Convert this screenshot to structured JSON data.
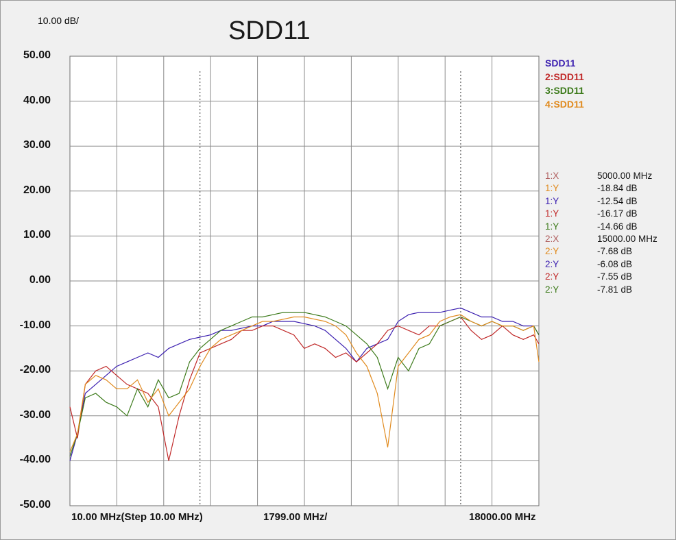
{
  "header": {
    "scale_label": "10.00 dB/",
    "title": "SDD11"
  },
  "legend": [
    {
      "label": "SDD11",
      "color": "#3b1fb0"
    },
    {
      "label": "2:SDD11",
      "color": "#c02828"
    },
    {
      "label": "3:SDD11",
      "color": "#3c7a1a"
    },
    {
      "label": "4:SDD11",
      "color": "#e08a1e"
    }
  ],
  "readouts": [
    {
      "label": "1:X",
      "value": "5000.00 MHz",
      "color": "#b06060"
    },
    {
      "label": "1:Y",
      "value": "-18.84 dB",
      "color": "#e08a1e"
    },
    {
      "label": "1:Y",
      "value": "-12.54 dB",
      "color": "#3b1fb0"
    },
    {
      "label": "1:Y",
      "value": "-16.17 dB",
      "color": "#c02828"
    },
    {
      "label": "1:Y",
      "value": "-14.66 dB",
      "color": "#3c7a1a"
    },
    {
      "label": "2:X",
      "value": "15000.00 MHz",
      "color": "#b06060"
    },
    {
      "label": "2:Y",
      "value": "-7.68 dB",
      "color": "#e08a1e"
    },
    {
      "label": "2:Y",
      "value": "-6.08 dB",
      "color": "#3b1fb0"
    },
    {
      "label": "2:Y",
      "value": "-7.55 dB",
      "color": "#c02828"
    },
    {
      "label": "2:Y",
      "value": "-7.81 dB",
      "color": "#3c7a1a"
    }
  ],
  "x_axis": {
    "start_label": "10.00 MHz(Step 10.00 MHz)",
    "step_label": "1799.00 MHz/",
    "end_label": "18000.00 MHz"
  },
  "chart_data": {
    "type": "line",
    "title": "SDD11",
    "xlim": [
      10,
      18000
    ],
    "ylim": [
      -50,
      50
    ],
    "yticks": [
      "50.00",
      "40.00",
      "30.00",
      "20.00",
      "10.00",
      "0.00",
      "-10.00",
      "-20.00",
      "-30.00",
      "-40.00",
      "-50.00"
    ],
    "x_divisions": 10,
    "y_divisions": 10,
    "grid": true,
    "markers": [
      {
        "name": "1",
        "x": 5000
      },
      {
        "name": "2",
        "x": 15000
      }
    ],
    "x": [
      10,
      300,
      600,
      1000,
      1400,
      1800,
      2200,
      2600,
      3000,
      3400,
      3800,
      4200,
      4600,
      5000,
      5400,
      5800,
      6200,
      6600,
      7000,
      7400,
      7800,
      8200,
      8600,
      9000,
      9400,
      9800,
      10200,
      10600,
      11000,
      11400,
      11800,
      12200,
      12600,
      13000,
      13400,
      13800,
      14200,
      14600,
      15000,
      15400,
      15800,
      16200,
      16600,
      17000,
      17400,
      17800,
      18000
    ],
    "series": [
      {
        "name": "SDD11",
        "color": "#3b1fb0",
        "values": [
          -40,
          -34,
          -25,
          -23,
          -21,
          -19,
          -18,
          -17,
          -16,
          -17,
          -15,
          -14,
          -13,
          -12.5,
          -12,
          -11,
          -11,
          -10.5,
          -10,
          -10,
          -9,
          -9,
          -9,
          -9.5,
          -10,
          -11,
          -13,
          -15,
          -18,
          -15,
          -14,
          -13,
          -9,
          -7.5,
          -7,
          -7,
          -7,
          -6.5,
          -6,
          -7,
          -8,
          -8,
          -9,
          -9,
          -10,
          -10,
          -12
        ]
      },
      {
        "name": "2:SDD11",
        "color": "#c02828",
        "values": [
          -28,
          -35,
          -23,
          -20,
          -19,
          -21,
          -23,
          -24,
          -25,
          -28,
          -40,
          -30,
          -22,
          -16,
          -15,
          -14,
          -13,
          -11,
          -11,
          -10,
          -10,
          -11,
          -12,
          -15,
          -14,
          -15,
          -17,
          -16,
          -18,
          -16,
          -14,
          -11,
          -10,
          -11,
          -12,
          -10,
          -10,
          -9,
          -8,
          -11,
          -13,
          -12,
          -10,
          -12,
          -13,
          -12,
          -14
        ]
      },
      {
        "name": "3:SDD11",
        "color": "#3c7a1a",
        "values": [
          -39,
          -34,
          -26,
          -25,
          -27,
          -28,
          -30,
          -24,
          -28,
          -22,
          -26,
          -25,
          -18,
          -15,
          -13,
          -11,
          -10,
          -9,
          -8,
          -8,
          -7.5,
          -7,
          -7,
          -7,
          -7.5,
          -8,
          -9,
          -10,
          -12,
          -14,
          -17,
          -24,
          -17,
          -20,
          -15,
          -14,
          -10,
          -9,
          -8,
          -9,
          -10,
          -9,
          -10,
          -10,
          -11,
          -10,
          -12
        ]
      },
      {
        "name": "4:SDD11",
        "color": "#e08a1e",
        "values": [
          -38,
          -34,
          -23,
          -21,
          -22,
          -24,
          -24,
          -22,
          -27,
          -24,
          -30,
          -27,
          -24,
          -19,
          -15,
          -13,
          -12,
          -11,
          -10,
          -9,
          -9,
          -8.5,
          -8,
          -8,
          -8.5,
          -9,
          -10,
          -12,
          -16,
          -19,
          -25,
          -37,
          -19,
          -16,
          -13,
          -12,
          -9,
          -8,
          -7.5,
          -9,
          -10,
          -9,
          -10,
          -10,
          -11,
          -10,
          -18
        ]
      }
    ]
  }
}
